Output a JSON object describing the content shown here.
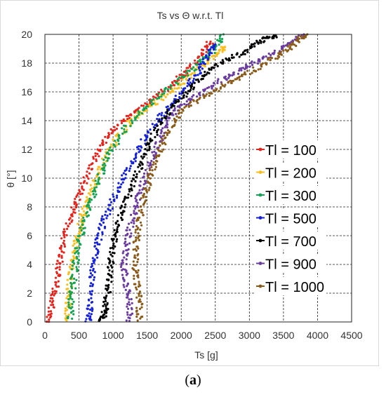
{
  "chart_data": {
    "type": "scatter",
    "title": "Ts vs Θ w.r.t. Tl",
    "xlabel": "Ts [g]",
    "ylabel": "θ [°]",
    "xlim": [
      0,
      4500
    ],
    "ylim": [
      0,
      20
    ],
    "xticks": [
      "0",
      "500",
      "1000",
      "1500",
      "2000",
      "2500",
      "3000",
      "3500",
      "4000",
      "4500"
    ],
    "yticks": [
      "0",
      "2",
      "4",
      "6",
      "8",
      "10",
      "12",
      "14",
      "16",
      "18",
      "20"
    ],
    "grid": true,
    "legend_position": "right",
    "series": [
      {
        "name": "Tl = 100",
        "color": "#e8221b",
        "points": [
          [
            60,
            0
          ],
          [
            90,
            1
          ],
          [
            140,
            2
          ],
          [
            180,
            3
          ],
          [
            215,
            4
          ],
          [
            250,
            5
          ],
          [
            300,
            6
          ],
          [
            360,
            7
          ],
          [
            430,
            8
          ],
          [
            520,
            9
          ],
          [
            600,
            10
          ],
          [
            700,
            11
          ],
          [
            800,
            12
          ],
          [
            930,
            13
          ],
          [
            1100,
            13.8
          ],
          [
            1300,
            14.5
          ],
          [
            1500,
            15.2
          ],
          [
            1700,
            15.9
          ],
          [
            1900,
            16.6
          ],
          [
            2050,
            17.3
          ],
          [
            2200,
            18
          ],
          [
            2330,
            18.9
          ],
          [
            2430,
            19.5
          ]
        ]
      },
      {
        "name": "Tl = 200",
        "color": "#fbbd1c",
        "points": [
          [
            330,
            0
          ],
          [
            340,
            1
          ],
          [
            350,
            2
          ],
          [
            370,
            3
          ],
          [
            400,
            4
          ],
          [
            440,
            5
          ],
          [
            480,
            6
          ],
          [
            530,
            7
          ],
          [
            590,
            8
          ],
          [
            680,
            9
          ],
          [
            760,
            10
          ],
          [
            850,
            11
          ],
          [
            950,
            12
          ],
          [
            1090,
            13
          ],
          [
            1230,
            13.8
          ],
          [
            1430,
            14.6
          ],
          [
            1630,
            15.3
          ],
          [
            1830,
            16
          ],
          [
            2030,
            16.7
          ],
          [
            2230,
            17.5
          ],
          [
            2420,
            18.3
          ],
          [
            2550,
            18.8
          ],
          [
            2640,
            19.1
          ]
        ]
      },
      {
        "name": "Tl = 300",
        "color": "#11a351",
        "points": [
          [
            370,
            0
          ],
          [
            380,
            1
          ],
          [
            400,
            2
          ],
          [
            420,
            3
          ],
          [
            450,
            4
          ],
          [
            480,
            5
          ],
          [
            520,
            6
          ],
          [
            580,
            7
          ],
          [
            650,
            8
          ],
          [
            720,
            9
          ],
          [
            790,
            10
          ],
          [
            880,
            11
          ],
          [
            980,
            12
          ],
          [
            1100,
            13
          ],
          [
            1270,
            14
          ],
          [
            1450,
            14.8
          ],
          [
            1650,
            15.6
          ],
          [
            1850,
            16.4
          ],
          [
            2050,
            17.2
          ],
          [
            2250,
            17.9
          ],
          [
            2400,
            18.5
          ],
          [
            2530,
            19.3
          ],
          [
            2620,
            20
          ]
        ]
      },
      {
        "name": "Tl = 500",
        "color": "#1420d9",
        "points": [
          [
            630,
            0
          ],
          [
            650,
            0.5
          ],
          [
            670,
            1.5
          ],
          [
            690,
            3
          ],
          [
            720,
            4
          ],
          [
            760,
            5
          ],
          [
            800,
            6
          ],
          [
            860,
            7
          ],
          [
            950,
            8
          ],
          [
            1050,
            9
          ],
          [
            1150,
            10
          ],
          [
            1260,
            11
          ],
          [
            1380,
            12
          ],
          [
            1500,
            13
          ],
          [
            1650,
            14
          ],
          [
            1800,
            14.8
          ],
          [
            1950,
            15.6
          ],
          [
            2100,
            16.4
          ],
          [
            2230,
            17.2
          ],
          [
            2330,
            18
          ],
          [
            2420,
            18.7
          ],
          [
            2500,
            19.3
          ]
        ]
      },
      {
        "name": "Tl = 700",
        "color": "#000000",
        "points": [
          [
            820,
            0
          ],
          [
            860,
            0.5
          ],
          [
            890,
            1
          ],
          [
            920,
            2
          ],
          [
            940,
            3
          ],
          [
            960,
            4
          ],
          [
            990,
            5
          ],
          [
            1030,
            6
          ],
          [
            1090,
            7
          ],
          [
            1160,
            8
          ],
          [
            1240,
            9
          ],
          [
            1320,
            10
          ],
          [
            1410,
            11
          ],
          [
            1500,
            12
          ],
          [
            1600,
            13
          ],
          [
            1720,
            14
          ],
          [
            1850,
            14.8
          ],
          [
            2000,
            15.6
          ],
          [
            2150,
            16.3
          ],
          [
            2300,
            17
          ],
          [
            2450,
            17.6
          ],
          [
            2650,
            18.2
          ],
          [
            2850,
            18.6
          ],
          [
            3000,
            19
          ],
          [
            3150,
            19.5
          ],
          [
            3270,
            19.8
          ],
          [
            3400,
            19.8
          ]
        ]
      },
      {
        "name": "Tl = 900",
        "color": "#6a3ba0",
        "points": [
          [
            1240,
            0
          ],
          [
            1250,
            1
          ],
          [
            1220,
            2
          ],
          [
            1180,
            3
          ],
          [
            1160,
            4
          ],
          [
            1180,
            5
          ],
          [
            1220,
            6
          ],
          [
            1270,
            7
          ],
          [
            1330,
            8
          ],
          [
            1400,
            9
          ],
          [
            1470,
            10
          ],
          [
            1540,
            11
          ],
          [
            1620,
            12
          ],
          [
            1710,
            13
          ],
          [
            1820,
            14
          ],
          [
            1950,
            14.8
          ],
          [
            2150,
            15.5
          ],
          [
            2350,
            16.1
          ],
          [
            2550,
            16.7
          ],
          [
            2750,
            17.2
          ],
          [
            2950,
            17.7
          ],
          [
            3150,
            18.2
          ],
          [
            3350,
            18.6
          ],
          [
            3500,
            19.1
          ],
          [
            3650,
            19.6
          ],
          [
            3800,
            20
          ]
        ]
      },
      {
        "name": "Tl = 1000",
        "color": "#8a5a19",
        "points": [
          [
            1380,
            0
          ],
          [
            1390,
            1
          ],
          [
            1370,
            2
          ],
          [
            1340,
            3
          ],
          [
            1320,
            4
          ],
          [
            1330,
            5
          ],
          [
            1350,
            6
          ],
          [
            1380,
            7
          ],
          [
            1420,
            8
          ],
          [
            1480,
            9
          ],
          [
            1540,
            10
          ],
          [
            1610,
            11
          ],
          [
            1690,
            12
          ],
          [
            1790,
            13
          ],
          [
            1900,
            14
          ],
          [
            2050,
            14.8
          ],
          [
            2250,
            15.4
          ],
          [
            2450,
            15.9
          ],
          [
            2650,
            16.5
          ],
          [
            2850,
            17
          ],
          [
            3050,
            17.5
          ],
          [
            3250,
            18
          ],
          [
            3450,
            18.6
          ],
          [
            3600,
            19.1
          ],
          [
            3700,
            19.6
          ],
          [
            3850,
            20
          ]
        ]
      }
    ]
  },
  "figure": {
    "caption_paren_open": "(",
    "caption_letter": "a",
    "caption_paren_close": ")"
  }
}
